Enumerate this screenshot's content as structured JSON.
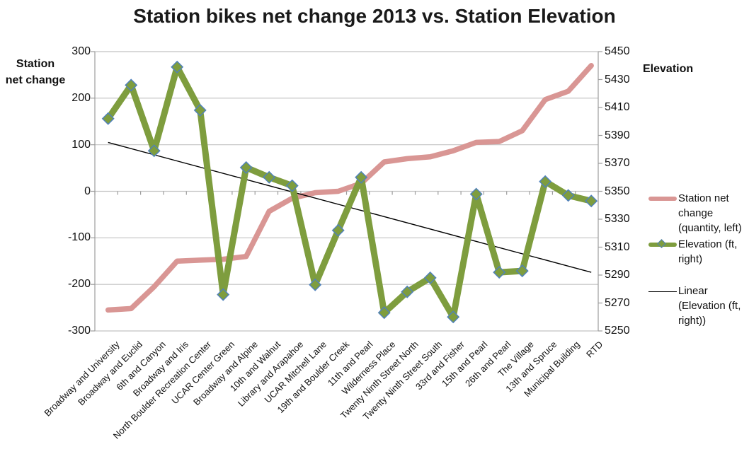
{
  "title": "Station bikes net change 2013 vs. Station Elevation",
  "chart_data": {
    "type": "line",
    "title": "Station bikes net change 2013 vs. Station Elevation",
    "grid": "horizontal",
    "legend_position": "right",
    "categories": [
      "Broadway and University",
      "Broadway and Euclid",
      "6th and Canyon",
      "Broadway and Iris",
      "North Boulder Recreation Center",
      "UCAR Center Green",
      "Broadway and Alpine",
      "10th and Walnut",
      "Library and Arapahoe",
      "UCAR Mitchell Lane",
      "19th and Boulder Creek",
      "11th and Pearl",
      "Wilderness Place",
      "Twenty Ninth Street North",
      "Twenty Ninth Street South",
      "33rd and Fisher",
      "15th and Pearl",
      "26th and Pearl",
      "The Village",
      "13th and Spruce",
      "Municipal Building",
      "RTD"
    ],
    "left_axis": {
      "title": "Station\nnet change",
      "min": -300,
      "max": 300,
      "ticks": [
        300,
        200,
        100,
        0,
        -100,
        -200,
        -300
      ]
    },
    "right_axis": {
      "title": "Elevation",
      "min": 5250,
      "max": 5450,
      "ticks": [
        5450,
        5430,
        5410,
        5390,
        5370,
        5350,
        5330,
        5310,
        5290,
        5270,
        5250
      ]
    },
    "series": [
      {
        "name": "Station net change (quantity, left)",
        "axis": "left",
        "style": "thick-line",
        "values": [
          -255,
          -252,
          -205,
          -150,
          -148,
          -146,
          -140,
          -43,
          -15,
          -3,
          0,
          17,
          63,
          70,
          74,
          87,
          105,
          107,
          130,
          197,
          215,
          270
        ]
      },
      {
        "name": "Elevation (ft, right)",
        "axis": "right",
        "style": "thick-line-diamond-markers",
        "values": [
          5402,
          5426,
          5379,
          5439,
          5408,
          5276,
          5367,
          5360,
          5354,
          5283,
          5322,
          5360,
          5263,
          5278,
          5288,
          5260,
          5348,
          5292,
          5293,
          5357,
          5347,
          5343
        ]
      },
      {
        "name": "Linear (Elevation (ft, right))",
        "axis": "right",
        "style": "trendline",
        "endpoints": [
          5385,
          5292
        ]
      }
    ]
  },
  "legend": {
    "items": [
      {
        "label": "Station net\nchange\n(quantity, left)"
      },
      {
        "label": "Elevation (ft,\nright)"
      },
      {
        "label": "Linear\n(Elevation (ft,\nright))"
      }
    ]
  },
  "colors": {
    "series_net_change": "#D99694",
    "series_elevation": "#7E9D3E",
    "marker_border": "#4F81BD",
    "trendline": "#000000",
    "gridline": "#C2C2C2",
    "axis_line": "#9D9D9D",
    "text": "#111111",
    "background": "#FFFFFF"
  }
}
